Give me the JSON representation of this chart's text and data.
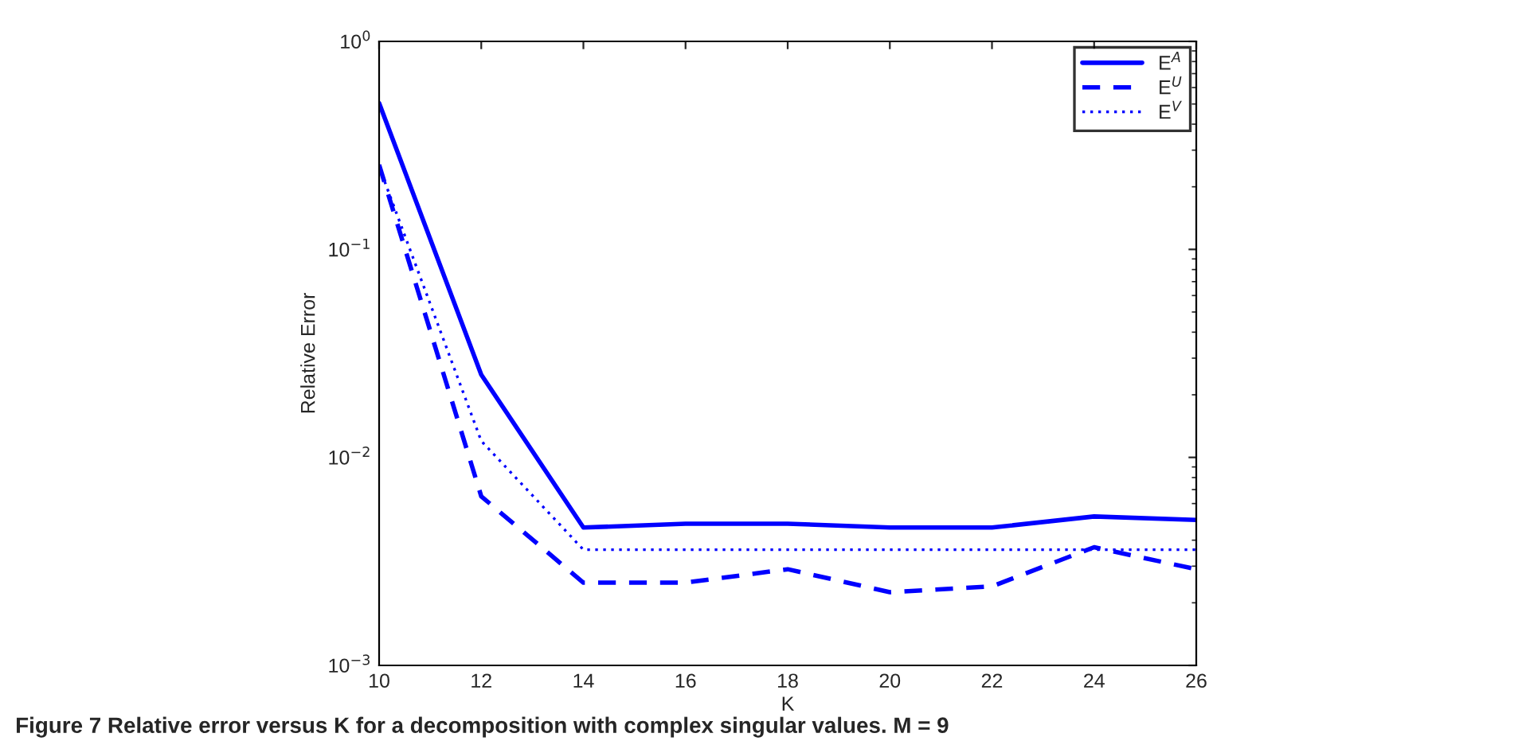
{
  "chart_data": {
    "type": "line",
    "xlabel": "K",
    "ylabel": "Relative Error",
    "x": [
      10,
      12,
      14,
      16,
      18,
      20,
      22,
      24,
      26
    ],
    "series": [
      {
        "name": "E$^{A}$",
        "color": "#0000ff",
        "line_style": "solid",
        "values": [
          0.505,
          0.025,
          0.0046,
          0.0048,
          0.0048,
          0.0046,
          0.0046,
          0.0052,
          0.005
        ]
      },
      {
        "name": "E$^{U}$",
        "color": "#0000ff",
        "line_style": "dashed",
        "values": [
          0.255,
          0.0065,
          0.0025,
          0.0025,
          0.0029,
          0.00225,
          0.0024,
          0.0037,
          0.0029
        ]
      },
      {
        "name": "E$^{V}$",
        "color": "#0000ff",
        "line_style": "dotted",
        "values": [
          0.25,
          0.012,
          0.0036,
          0.0036,
          0.0036,
          0.0036,
          0.0036,
          0.0036,
          0.0036
        ]
      }
    ],
    "log": "y",
    "xlim": [
      10,
      26
    ],
    "xticks": [
      10,
      12,
      14,
      16,
      18,
      20,
      22,
      24,
      26
    ],
    "ylim": [
      0.001,
      1
    ],
    "yticks": [
      {
        "value": 0.001,
        "label": "10$^{−3}$"
      },
      {
        "value": 0.01,
        "label": "10$^{−2}$"
      },
      {
        "value": 0.1,
        "label": "10$^{−1}$"
      },
      {
        "value": 1,
        "label": "10$^{0}$"
      }
    ],
    "grid": false,
    "legend": "top right",
    "marker": "none",
    "annotations": [
      "Figure 7 Relative error versus K for a decomposition with complex singular values. M = 9"
    ]
  }
}
